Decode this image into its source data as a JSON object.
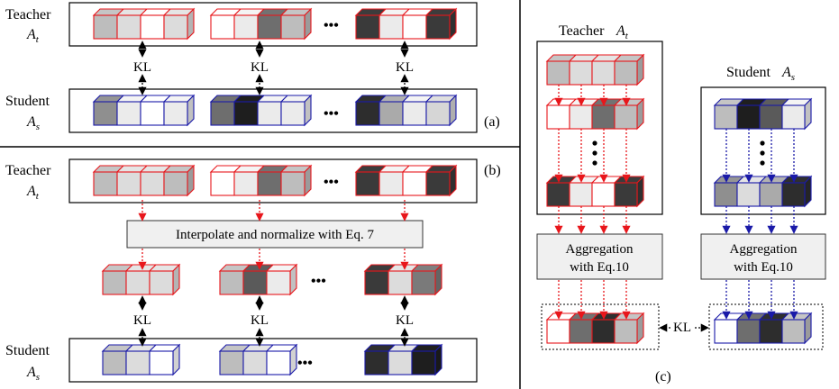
{
  "colors": {
    "teacher_edge": "#e8161b",
    "student_edge": "#1a1aa8",
    "arrow_red": "#e8161b",
    "arrow_blue": "#1a1aa8",
    "arrow_black": "#000000",
    "box_fill": "#f0f0f0"
  },
  "labels": {
    "teacher": "Teacher",
    "student": "Student",
    "teacher_sym": "A",
    "teacher_sub": "t",
    "student_sym": "A",
    "student_sub": "s",
    "kl": "KL",
    "panel_a": "(a)",
    "panel_b": "(b)",
    "panel_c": "(c)",
    "interpolate": "Interpolate and normalize with Eq. 7",
    "aggregation_line1": "Aggregation",
    "aggregation_line2": "with Eq.10",
    "ellipsis": "•••"
  },
  "shades": {
    "panel_a_teacher": [
      [
        "#bdbdbd",
        "#dcdcdc",
        "#ffffff",
        "#dcdcdc"
      ],
      [
        "#ffffff",
        "#ebebeb",
        "#6e6e6e",
        "#bdbdbd"
      ],
      [
        "#3a3a3a",
        "#ebebeb",
        "#ffffff",
        "#3a3a3a"
      ]
    ],
    "panel_a_student": [
      [
        "#8f8f8f",
        "#ebebeb",
        "#ffffff",
        "#ebebeb"
      ],
      [
        "#6e6e6e",
        "#1e1e1e",
        "#ebebeb",
        "#ebebeb"
      ],
      [
        "#2d2d2d",
        "#aaaaaa",
        "#ebebeb",
        "#d6d6d6"
      ]
    ],
    "panel_b_teacher": [
      [
        "#bdbdbd",
        "#dcdcdc",
        "#dcdcdc",
        "#bdbdbd"
      ],
      [
        "#ffffff",
        "#ebebeb",
        "#6e6e6e",
        "#bdbdbd"
      ],
      [
        "#3a3a3a",
        "#ebebeb",
        "#ffffff",
        "#3a3a3a"
      ]
    ],
    "panel_b_interp": [
      [
        "#bdbdbd",
        "#dcdcdc",
        "#dcdcdc"
      ],
      [
        "#bdbdbd",
        "#5a5a5a",
        "#ebebeb"
      ],
      [
        "#3a3a3a",
        "#dcdcdc",
        "#7a7a7a"
      ]
    ],
    "panel_b_student": [
      [
        "#bdbdbd",
        "#dcdcdc",
        "#ffffff"
      ],
      [
        "#bdbdbd",
        "#dcdcdc",
        "#ffffff"
      ],
      [
        "#2d2d2d",
        "#dcdcdc",
        "#1e1e1e"
      ]
    ],
    "panel_c_teacher": [
      [
        "#bdbdbd",
        "#dcdcdc",
        "#dcdcdc",
        "#bdbdbd"
      ],
      [
        "#ffffff",
        "#ebebeb",
        "#6e6e6e",
        "#bdbdbd"
      ],
      [
        "#3a3a3a",
        "#ebebeb",
        "#ffffff",
        "#3a3a3a"
      ]
    ],
    "panel_c_student": [
      [
        "#bdbdbd",
        "#1e1e1e",
        "#5a5a5a",
        "#ebebeb"
      ],
      [
        "#8f8f8f",
        "#dcdcdc",
        "#aaaaaa",
        "#2d2d2d"
      ]
    ],
    "panel_c_teacher_out": [
      "#ffffff",
      "#6e6e6e",
      "#2d2d2d",
      "#bdbdbd"
    ],
    "panel_c_student_out": [
      "#ffffff",
      "#6e6e6e",
      "#2d2d2d",
      "#bdbdbd"
    ]
  }
}
